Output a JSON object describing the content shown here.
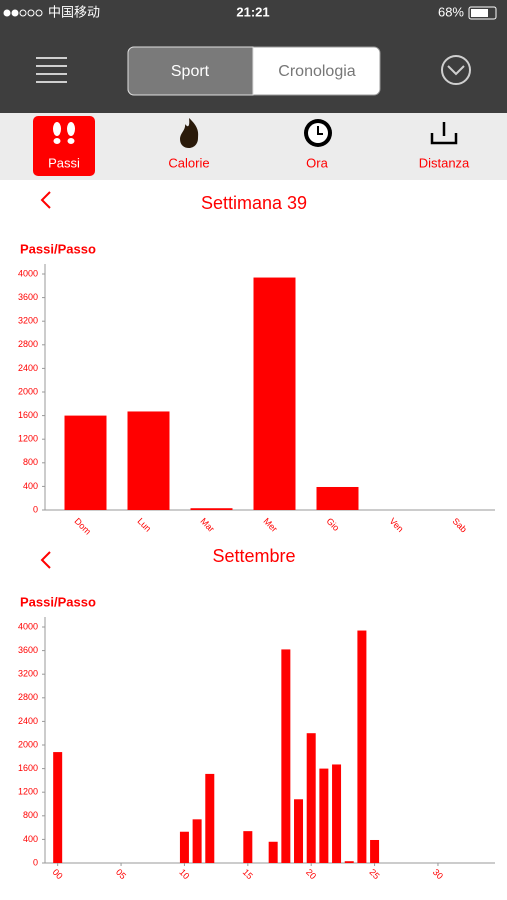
{
  "status_bar": {
    "carrier": "中国移动",
    "time": "21:21",
    "battery": "68%"
  },
  "nav": {
    "segments": [
      "Sport",
      "Cronologia"
    ]
  },
  "tabs": [
    "Passi",
    "Calorie",
    "Ora",
    "Distanza"
  ],
  "chart_data": [
    {
      "type": "bar",
      "title": "Settimana 39",
      "y_label": "Passi/Passo",
      "categories": [
        "Dom",
        "Lun",
        "Mar",
        "Mer",
        "Gio",
        "Ven",
        "Sab"
      ],
      "values": [
        1600,
        1670,
        30,
        3940,
        390,
        0,
        0
      ],
      "color": "#ff0000",
      "ylim": [
        0,
        4000
      ],
      "yticks": [
        0,
        400,
        800,
        1200,
        1600,
        2000,
        2400,
        2800,
        3200,
        3600,
        4000
      ]
    },
    {
      "type": "bar",
      "title": "Settembre",
      "y_label": "Passi/Passo",
      "x": [
        0,
        10,
        11,
        12,
        15,
        17,
        18,
        19,
        20,
        21,
        22,
        23,
        24,
        25
      ],
      "values": [
        1880,
        530,
        740,
        1510,
        540,
        360,
        3620,
        1080,
        2200,
        1600,
        1670,
        30,
        3940,
        390
      ],
      "color": "#ff0000",
      "xlim": [
        -1,
        34.5
      ],
      "xticks": [
        {
          "value": 0,
          "label": "00"
        },
        {
          "value": 5,
          "label": "05"
        },
        10,
        15,
        20,
        25,
        30
      ],
      "ylim": [
        0,
        4000
      ],
      "yticks": [
        0,
        400,
        800,
        1200,
        1600,
        2000,
        2400,
        2800,
        3200,
        3600,
        4000
      ]
    }
  ]
}
